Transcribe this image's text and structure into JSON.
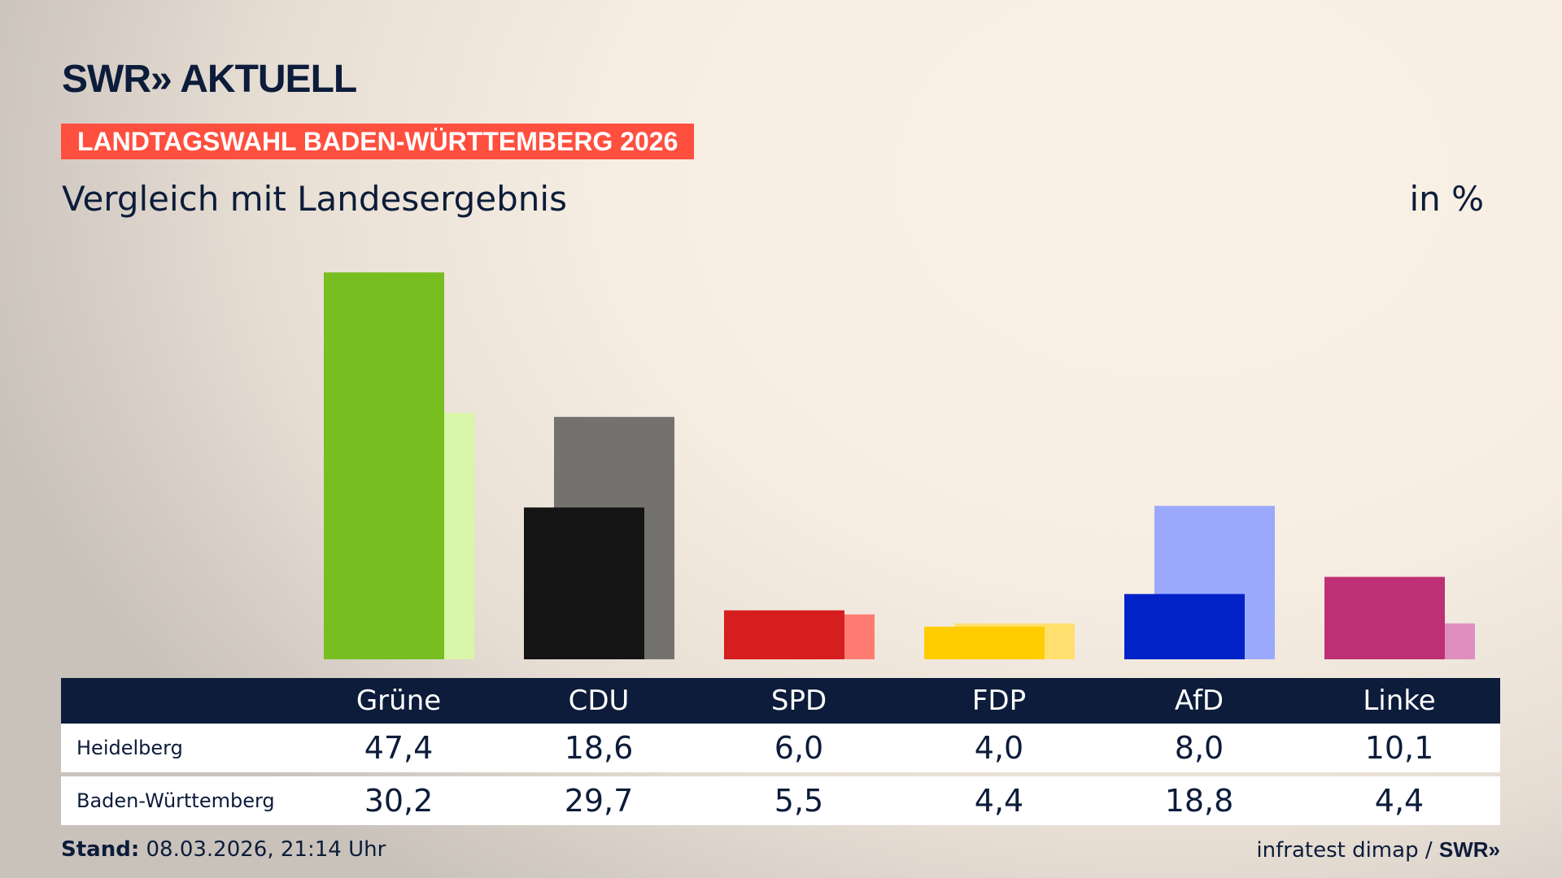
{
  "header": {
    "logo": "SWR» AKTUELL",
    "banner": "LANDTAGSWAHL BADEN-WÜRTTEMBERG 2026",
    "subtitle": "Vergleich mit Landesergebnis",
    "unit": "in %"
  },
  "chart_data": {
    "type": "bar",
    "categories": [
      "Grüne",
      "CDU",
      "SPD",
      "FDP",
      "AfD",
      "Linke"
    ],
    "series": [
      {
        "name": "Heidelberg",
        "values": [
          47.4,
          18.6,
          6.0,
          4.0,
          8.0,
          10.1
        ],
        "display": [
          "47,4",
          "18,6",
          "6,0",
          "4,0",
          "8,0",
          "10,1"
        ],
        "colors": [
          "#78be20",
          "#141414",
          "#d61e1e",
          "#ffcc00",
          "#0022c7",
          "#be3075"
        ]
      },
      {
        "name": "Baden-Württemberg",
        "values": [
          30.2,
          29.7,
          5.5,
          4.4,
          18.8,
          4.4
        ],
        "display": [
          "30,2",
          "29,7",
          "5,5",
          "4,4",
          "18,8",
          "4,4"
        ],
        "colors": [
          "#d8f5a8",
          "#74726f",
          "#ff7b72",
          "#ffe06e",
          "#9aa9fb",
          "#de8fbf"
        ]
      }
    ],
    "ylim": [
      0,
      50
    ],
    "grid": false,
    "legend": "table-below"
  },
  "footer": {
    "stand_label": "Stand:",
    "stand_value": "08.03.2026, 21:14 Uhr",
    "source": "infratest dimap /",
    "source_logo": "SWR»"
  },
  "colors": {
    "navy": "#0c1c3a",
    "accent": "#ff4f3f"
  }
}
